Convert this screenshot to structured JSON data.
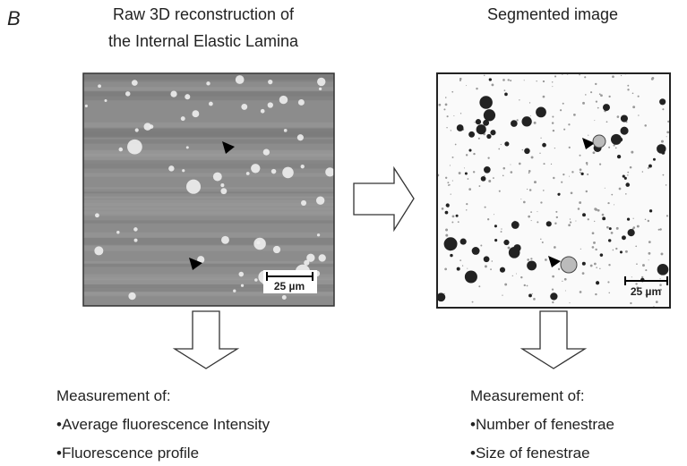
{
  "panel_label": "B",
  "left": {
    "title": [
      "Raw 3D reconstruction of",
      "the Internal Elastic Lamina"
    ],
    "scale_bar": "25 µm",
    "measurement": {
      "heading": "Measurement of:",
      "items": [
        "•Average fluorescence Intensity",
        "•Fluorescence profile"
      ]
    }
  },
  "right": {
    "title": [
      "Segmented image"
    ],
    "scale_bar": "25 µm",
    "measurement": {
      "heading": "Measurement of:",
      "items": [
        "•Number of fenestrae",
        "•Size of fenestrae"
      ]
    }
  }
}
